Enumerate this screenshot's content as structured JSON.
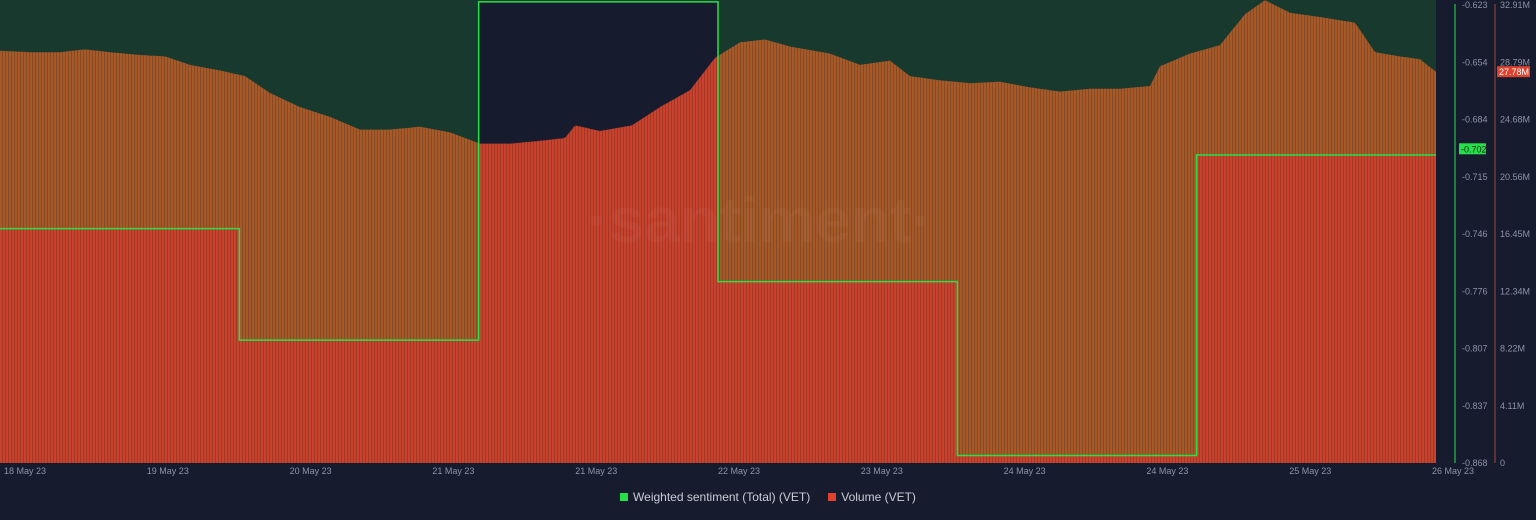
{
  "chart_data": {
    "type": "bar",
    "watermark": "·santiment·",
    "x_ticks": [
      "18 May 23",
      "19 May 23",
      "20 May 23",
      "21 May 23",
      "21 May 23",
      "22 May 23",
      "23 May 23",
      "24 May 23",
      "24 May 23",
      "25 May 23",
      "26 May 23"
    ],
    "series": [
      {
        "name": "Weighted sentiment (Total) (VET)",
        "color": "#26e04a",
        "axis": "left",
        "type": "step-line",
        "values": [
          -0.744,
          -0.803,
          -0.624,
          -0.772,
          -0.864,
          -0.705
        ]
      },
      {
        "name": "Volume (VET)",
        "color": "#e0412d",
        "axis": "right",
        "type": "bar",
        "profile": [
          [
            0,
            29.3
          ],
          [
            30,
            29.2
          ],
          [
            60,
            29.2
          ],
          [
            85,
            29.4
          ],
          [
            110,
            29.2
          ],
          [
            140,
            29.0
          ],
          [
            165,
            28.9
          ],
          [
            190,
            28.3
          ],
          [
            220,
            27.9
          ],
          [
            245,
            27.5
          ],
          [
            270,
            26.3
          ],
          [
            300,
            25.3
          ],
          [
            330,
            24.6
          ],
          [
            360,
            23.7
          ],
          [
            390,
            23.7
          ],
          [
            420,
            23.9
          ],
          [
            450,
            23.5
          ],
          [
            480,
            22.7
          ],
          [
            510,
            22.7
          ],
          [
            540,
            22.9
          ],
          [
            565,
            23.1
          ],
          [
            575,
            24.0
          ],
          [
            600,
            23.6
          ],
          [
            632,
            24.0
          ],
          [
            660,
            25.3
          ],
          [
            690,
            26.5
          ],
          [
            715,
            28.8
          ],
          [
            740,
            29.9
          ],
          [
            765,
            30.1
          ],
          [
            790,
            29.6
          ],
          [
            830,
            29.1
          ],
          [
            860,
            28.3
          ],
          [
            890,
            28.6
          ],
          [
            910,
            27.5
          ],
          [
            940,
            27.2
          ],
          [
            970,
            27.0
          ],
          [
            1000,
            27.1
          ],
          [
            1030,
            26.7
          ],
          [
            1060,
            26.4
          ],
          [
            1090,
            26.6
          ],
          [
            1120,
            26.6
          ],
          [
            1150,
            26.8
          ],
          [
            1160,
            28.2
          ],
          [
            1190,
            29.1
          ],
          [
            1220,
            29.7
          ],
          [
            1245,
            31.9
          ],
          [
            1265,
            32.9
          ],
          [
            1290,
            32.0
          ],
          [
            1320,
            31.7
          ],
          [
            1355,
            31.3
          ],
          [
            1375,
            29.2
          ],
          [
            1400,
            28.9
          ],
          [
            1420,
            28.7
          ],
          [
            1436,
            27.8
          ]
        ]
      }
    ],
    "left_axis": {
      "ticks": [
        "-0.623",
        "-0.654",
        "-0.684",
        "-0.715",
        "-0.746",
        "-0.776",
        "-0.807",
        "-0.837",
        "-0.868"
      ],
      "current_label": "-0.702",
      "current_value": -0.702
    },
    "right_axis": {
      "ticks": [
        "32.91M",
        "28.79M",
        "24.68M",
        "20.56M",
        "16.45M",
        "12.34M",
        "8.22M",
        "4.11M",
        "0"
      ],
      "current_label": "27.78M",
      "current_value": 27.78
    },
    "colors": {
      "background": "#171b2e",
      "sentiment_above_fill": "#183a2e",
      "volume_fill_upper": "#a65a2a",
      "volume_fill_lower": "#c8432e",
      "axis_text": "#8d93a8"
    },
    "legend_placement": "bottom-center"
  }
}
